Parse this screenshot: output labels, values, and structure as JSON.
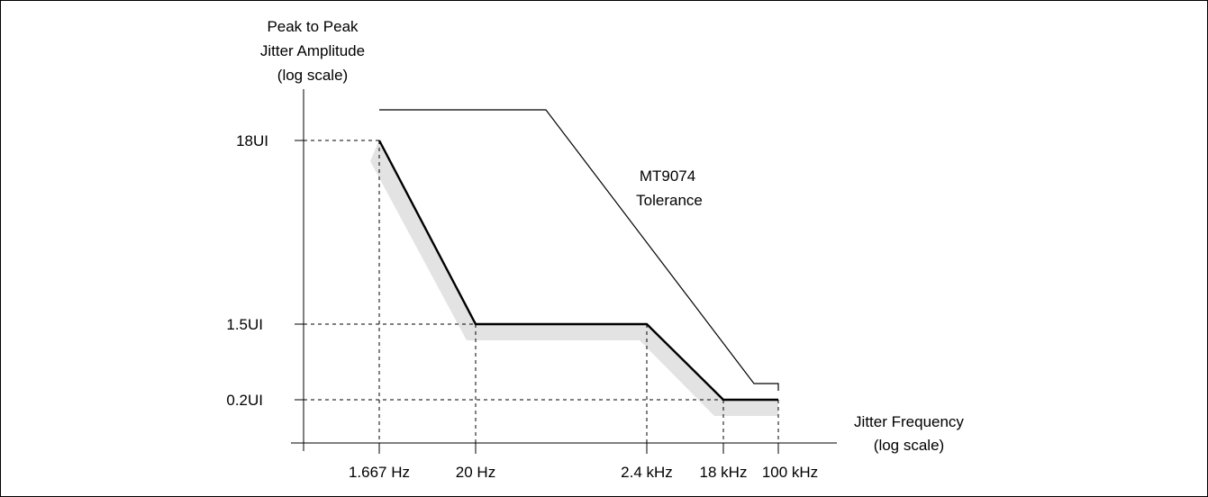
{
  "y_axis": {
    "title_lines": [
      "Peak to Peak",
      "Jitter Amplitude",
      "(log scale)"
    ],
    "ticks": [
      "18UI",
      "1.5UI",
      "0.2UI"
    ]
  },
  "x_axis": {
    "title_lines": [
      "Jitter Frequency",
      "(log scale)"
    ],
    "ticks": [
      "1.667 Hz",
      "20 Hz",
      "2.4 kHz",
      "18 kHz",
      "100 kHz"
    ]
  },
  "annotation_lines": [
    "MT9074",
    "Tolerance"
  ],
  "chart_data": {
    "type": "line",
    "x_scale": "log",
    "y_scale": "log",
    "x_units": "Hz",
    "y_units": "UI",
    "xlabel": "Jitter Frequency (log scale)",
    "ylabel": "Peak to Peak Jitter Amplitude (log scale)",
    "series": [
      {
        "style": "thick black line with grey shadow band below",
        "x": [
          1.667,
          20,
          2400,
          18000,
          100000
        ],
        "y": [
          18,
          1.5,
          1.5,
          0.2,
          0.2
        ]
      },
      {
        "name": "MT9074 Tolerance",
        "style": "thin black line",
        "x": [
          1.667,
          100,
          20000,
          100000,
          100000
        ],
        "y": [
          26,
          26,
          0.26,
          0.26,
          0.22
        ]
      }
    ],
    "reference_lines": "dashed",
    "grid": false,
    "colors": {
      "line": "#000000",
      "shadow": "#e3e3e3",
      "background": "#ffffff"
    }
  }
}
